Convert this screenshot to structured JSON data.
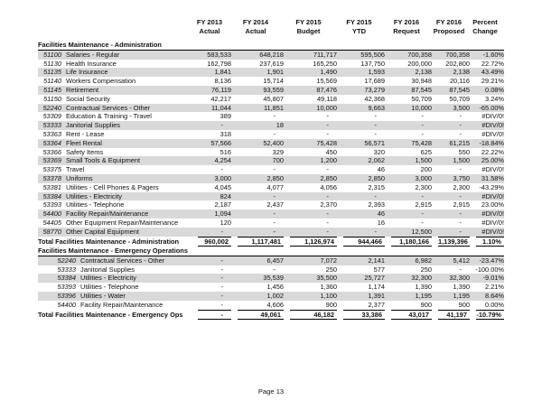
{
  "page": {
    "footer": "Page 13"
  },
  "table": {
    "columns": [
      {
        "line1": "FY 2013",
        "line2": "Actual"
      },
      {
        "line1": "FY 2014",
        "line2": "Actual"
      },
      {
        "line1": "FY 2015",
        "line2": "Budget"
      },
      {
        "line1": "FY 2015",
        "line2": "YTD"
      },
      {
        "line1": "FY 2016",
        "line2": "Request"
      },
      {
        "line1": "FY 2016",
        "line2": "Proposed"
      },
      {
        "line1": "Percent",
        "line2": "Change"
      }
    ],
    "sections": [
      {
        "title": "Facilities Maintenance - Administration",
        "rows": [
          {
            "code": "51100",
            "label": "Salaries - Regular",
            "values": [
              "583,533",
              "648,218",
              "711,717",
              "595,506",
              "700,358",
              "700,358",
              "-1.60%"
            ]
          },
          {
            "code": "51130",
            "label": "Health Insurance",
            "values": [
              "162,798",
              "237,619",
              "165,250",
              "137,750",
              "200,000",
              "202,800",
              "22.72%"
            ]
          },
          {
            "code": "51135",
            "label": "Life Insurance",
            "values": [
              "1,841",
              "1,901",
              "1,490",
              "1,593",
              "2,138",
              "2,138",
              "43.49%"
            ]
          },
          {
            "code": "51140",
            "label": "Workers Compensation",
            "values": [
              "8,136",
              "15,714",
              "15,569",
              "17,689",
              "30,948",
              "20,116",
              "29.21%"
            ]
          },
          {
            "code": "51145",
            "label": "Retirement",
            "values": [
              "76,119",
              "93,559",
              "87,476",
              "73,279",
              "87,545",
              "87,545",
              "0.08%"
            ]
          },
          {
            "code": "51150",
            "label": "Social Security",
            "values": [
              "42,217",
              "45,807",
              "49,118",
              "42,368",
              "50,709",
              "50,709",
              "3.24%"
            ]
          },
          {
            "code": "52240",
            "label": "Contractual Services - Other",
            "values": [
              "11,044",
              "11,851",
              "10,000",
              "9,663",
              "10,000",
              "3,500",
              "-65.00%"
            ]
          },
          {
            "code": "53309",
            "label": "Education & Training - Travel",
            "values": [
              "389",
              "-",
              "-",
              "-",
              "-",
              "-",
              "#DIV/0!"
            ]
          },
          {
            "code": "53333",
            "label": "Janitorial Supplies",
            "values": [
              "-",
              "18",
              "-",
              "-",
              "-",
              "-",
              "#DIV/0!"
            ]
          },
          {
            "code": "53363",
            "label": "Rent - Lease",
            "values": [
              "318",
              "-",
              "-",
              "-",
              "-",
              "-",
              "#DIV/0!"
            ]
          },
          {
            "code": "53364",
            "label": "Fleet Rental",
            "values": [
              "57,566",
              "52,400",
              "75,428",
              "56,571",
              "75,428",
              "61,215",
              "-18.84%"
            ]
          },
          {
            "code": "53366",
            "label": "Safety Items",
            "values": [
              "516",
              "329",
              "450",
              "320",
              "625",
              "550",
              "22.22%"
            ]
          },
          {
            "code": "53369",
            "label": "Small Tools & Equipment",
            "values": [
              "4,254",
              "700",
              "1,200",
              "2,062",
              "1,500",
              "1,500",
              "25.00%"
            ]
          },
          {
            "code": "53375",
            "label": "Travel",
            "values": [
              "-",
              "-",
              "-",
              "46",
              "200",
              "-",
              "#DIV/0!"
            ]
          },
          {
            "code": "53378",
            "label": "Uniforms",
            "values": [
              "3,000",
              "2,850",
              "2,850",
              "2,850",
              "3,000",
              "3,750",
              "31.58%"
            ]
          },
          {
            "code": "53381",
            "label": "Utilities - Cell Phones & Pagers",
            "values": [
              "4,045",
              "4,077",
              "4,056",
              "2,315",
              "2,300",
              "2,300",
              "-43.29%"
            ]
          },
          {
            "code": "53384",
            "label": "Utilities - Electricity",
            "values": [
              "824",
              "-",
              "-",
              "-",
              "-",
              "-",
              "#DIV/0!"
            ]
          },
          {
            "code": "53393",
            "label": "Utilities - Telephone",
            "values": [
              "2,187",
              "2,437",
              "2,370",
              "2,393",
              "2,915",
              "2,915",
              "23.00%"
            ]
          },
          {
            "code": "54400",
            "label": "Facility Repair/Maintenance",
            "values": [
              "1,094",
              "-",
              "-",
              "46",
              "-",
              "-",
              "#DIV/0!"
            ]
          },
          {
            "code": "54405",
            "label": "Other Equipment Repair/Maintenance",
            "values": [
              "120",
              "-",
              "-",
              "16",
              "-",
              "-",
              "#DIV/0!"
            ]
          },
          {
            "code": "58770",
            "label": "Other Capital Equipment",
            "values": [
              "-",
              "-",
              "-",
              "-",
              "12,500",
              "-",
              "#DIV/0!"
            ]
          }
        ],
        "total": {
          "label": "Total Facilities Maintenance - Administration",
          "values": [
            "960,002",
            "1,117,481",
            "1,126,974",
            "944,466",
            "1,180,166",
            "1,139,396",
            "1.10%"
          ]
        }
      },
      {
        "title": "Facilities Maintenance - Emergency Operations",
        "rows": [
          {
            "code": "52240",
            "label": "Contractual Services - Other",
            "values": [
              "-",
              "6,457",
              "7,072",
              "2,141",
              "6,982",
              "5,412",
              "-23.47%"
            ]
          },
          {
            "code": "53333",
            "label": "Janitorial Supplies",
            "values": [
              "-",
              "-",
              "250",
              "577",
              "250",
              "-",
              "-100.00%"
            ]
          },
          {
            "code": "53384",
            "label": "Utilities - Electricity",
            "values": [
              "-",
              "35,539",
              "35,500",
              "25,727",
              "32,300",
              "32,300",
              "-9.01%"
            ]
          },
          {
            "code": "53393",
            "label": "Utilities - Telephone",
            "values": [
              "-",
              "1,456",
              "1,360",
              "1,174",
              "1,390",
              "1,390",
              "2.21%"
            ]
          },
          {
            "code": "53396",
            "label": "Utilities - Water",
            "values": [
              "-",
              "1,002",
              "1,100",
              "1,391",
              "1,195",
              "1,195",
              "8.64%"
            ]
          },
          {
            "code": "54400",
            "label": "Facility Repair/Maintenance",
            "values": [
              "-",
              "4,606",
              "900",
              "2,377",
              "900",
              "900",
              "0.00%"
            ]
          }
        ],
        "total": {
          "label": "Total Facilities Maintenance - Emergency Ops",
          "values": [
            "-",
            "49,061",
            "46,182",
            "33,386",
            "43,017",
            "41,197",
            "-10.79%"
          ]
        }
      }
    ]
  }
}
